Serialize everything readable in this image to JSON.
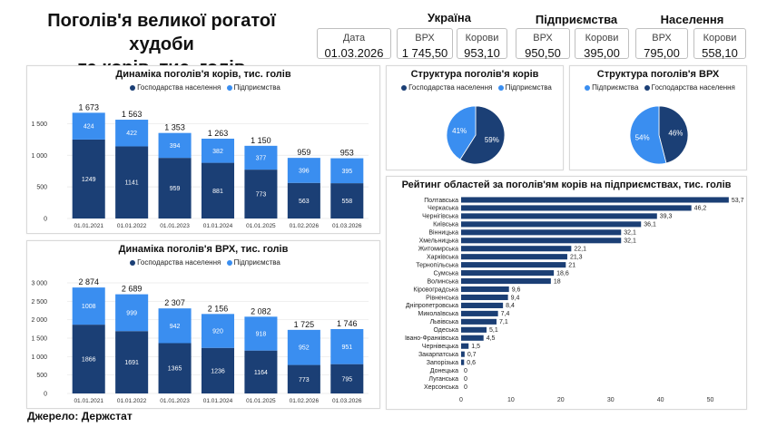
{
  "header": {
    "title_line1": "Поголів'я великої рогатої худоби",
    "title_line2": "та корів, тис. голів"
  },
  "kpis": {
    "date_label": "Дата",
    "date_value": "01.03.2026",
    "ukraine_title": "Україна",
    "enterprises_title": "Підприємства",
    "population_title": "Населення",
    "ukraine_vrh_label": "ВРХ",
    "ukraine_vrh_value": "1 745,50",
    "ukraine_cows_label": "Корови",
    "ukraine_cows_value": "953,10",
    "ent_vrh_label": "ВРХ",
    "ent_vrh_value": "950,50",
    "ent_cows_label": "Корови",
    "ent_cows_value": "395,00",
    "pop_vrh_label": "ВРХ",
    "pop_vrh_value": "795,00",
    "pop_cows_label": "Корови",
    "pop_cows_value": "558,10"
  },
  "colors": {
    "households": "#1b3f75",
    "enterprises": "#3a8ef0",
    "bar_rank": "#1b3f75"
  },
  "legend": {
    "households": "Господарства населення",
    "enterprises": "Підприємства"
  },
  "source": "Джерело: Держстат",
  "chart_data": [
    {
      "id": "cows",
      "type": "bar",
      "stacked": true,
      "title": "Динаміка поголів'я корів, тис. голів",
      "categories": [
        "01.01.2021",
        "01.01.2022",
        "01.01.2023",
        "01.01.2024",
        "01.01.2025",
        "01.02.2026",
        "01.03.2026"
      ],
      "series": [
        {
          "name": "Господарства населення",
          "values": [
            1249,
            1141,
            959,
            881,
            773,
            563,
            558
          ]
        },
        {
          "name": "Підприємства",
          "values": [
            424,
            422,
            394,
            382,
            377,
            396,
            395
          ]
        }
      ],
      "totals": [
        "1 673",
        "1 563",
        "1 353",
        "1 263",
        "1 150",
        "959",
        "953"
      ],
      "segment_labels": [
        [
          "1249",
          "1141",
          "959",
          "881",
          "773",
          "563",
          "558"
        ],
        [
          "424",
          "422",
          "394",
          "382",
          "377",
          "396",
          "395"
        ]
      ],
      "ylim": [
        0,
        1750
      ],
      "yticks": [
        0,
        500,
        1000,
        1500
      ],
      "ytick_labels": [
        "0",
        "500",
        "1 000",
        "1 500"
      ],
      "grid": true,
      "legend_position": "top"
    },
    {
      "id": "vrh",
      "type": "bar",
      "stacked": true,
      "title": "Динаміка поголів'я ВРХ, тис. голів",
      "categories": [
        "01.01.2021",
        "01.01.2022",
        "01.01.2023",
        "01.01.2024",
        "01.01.2025",
        "01.02.2026",
        "01.03.2026"
      ],
      "series": [
        {
          "name": "Господарства населення",
          "values": [
            1866,
            1691,
            1365,
            1236,
            1164,
            773,
            795
          ]
        },
        {
          "name": "Підприємства",
          "values": [
            1008,
            999,
            942,
            920,
            918,
            952,
            951
          ]
        }
      ],
      "totals": [
        "2 874",
        "2 689",
        "2 307",
        "2 156",
        "2 082",
        "1 725",
        "1 746"
      ],
      "segment_labels": [
        [
          "1866",
          "1691",
          "1365",
          "1236",
          "1164",
          "773",
          "795"
        ],
        [
          "1008",
          "999",
          "942",
          "920",
          "918",
          "952",
          "951"
        ]
      ],
      "ylim": [
        0,
        3000
      ],
      "yticks": [
        0,
        500,
        1000,
        1500,
        2000,
        2500,
        3000
      ],
      "ytick_labels": [
        "0",
        "500",
        "1 000",
        "1 500",
        "2 000",
        "2 500",
        "3 000"
      ],
      "grid": true,
      "legend_position": "top"
    },
    {
      "id": "pie_cows",
      "type": "pie",
      "title": "Структура поголів'я корів",
      "slices": [
        {
          "name": "Господарства населення",
          "value": 59,
          "label": "59%"
        },
        {
          "name": "Підприємства",
          "value": 41,
          "label": "41%"
        }
      ],
      "legend_position": "top"
    },
    {
      "id": "pie_vrh",
      "type": "pie",
      "title": "Структура поголів'я ВРХ",
      "slices": [
        {
          "name": "Підприємства",
          "value": 54,
          "label": "54%"
        },
        {
          "name": "Господарства населення",
          "value": 46,
          "label": "46%"
        }
      ],
      "legend_position": "top"
    },
    {
      "id": "rank",
      "type": "bar",
      "orientation": "horizontal",
      "title": "Рейтинг областей за поголів'ям корів на підприємствах, тис. голів",
      "categories": [
        "Полтавська",
        "Черкаська",
        "Чернігівська",
        "Київська",
        "Вінницька",
        "Хмельницька",
        "Житомирська",
        "Харківська",
        "Тернопільська",
        "Сумська",
        "Волинська",
        "Кіровоградська",
        "Рівненська",
        "Дніпропетровська",
        "Миколаївська",
        "Львівська",
        "Одеська",
        "Івано-Франківська",
        "Чернівецька",
        "Закарпатська",
        "Запорізька",
        "Донецька",
        "Луганська",
        "Херсонська"
      ],
      "values": [
        53.7,
        46.2,
        39.3,
        36.1,
        32.1,
        32.1,
        22.1,
        21.3,
        21,
        18.6,
        18,
        9.6,
        9.4,
        8.4,
        7.4,
        7.1,
        5.1,
        4.5,
        1.5,
        0.7,
        0.6,
        0,
        0,
        0
      ],
      "value_labels": [
        "53,7",
        "46,2",
        "39,3",
        "36,1",
        "32,1",
        "32,1",
        "22,1",
        "21,3",
        "21",
        "18,6",
        "18",
        "9,6",
        "9,4",
        "8,4",
        "7,4",
        "7,1",
        "5,1",
        "4,5",
        "1,5",
        "0,7",
        "0,6",
        "0",
        "0",
        "0"
      ],
      "xlim": [
        0,
        55
      ],
      "xticks": [
        0,
        10,
        20,
        30,
        40,
        50
      ],
      "xtick_labels": [
        "0",
        "10",
        "20",
        "30",
        "40",
        "50"
      ]
    }
  ]
}
